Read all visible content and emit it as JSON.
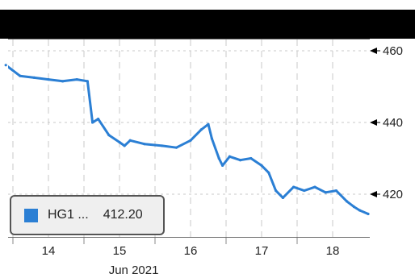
{
  "chart_data": {
    "type": "line",
    "x_ticks": [
      "14",
      "15",
      "16",
      "17",
      "18"
    ],
    "x_month_label": "Jun 2021",
    "y_ticks": [
      420,
      440,
      460
    ],
    "ylim": [
      411,
      463
    ],
    "grid": true,
    "grid_style": "dashed",
    "legend_position": "bottom-left",
    "series": [
      {
        "name": "HG1 ...",
        "last_value": "412.20",
        "color": "#2b7fd4",
        "x": [
          13.4,
          13.6,
          13.8,
          14.0,
          14.2,
          14.4,
          14.55,
          14.62,
          14.7,
          14.85,
          15.0,
          15.07,
          15.15,
          15.35,
          15.6,
          15.8,
          16.0,
          16.15,
          16.25,
          16.3,
          16.4,
          16.45,
          16.55,
          16.7,
          16.85,
          17.0,
          17.1,
          17.2,
          17.3,
          17.45,
          17.6,
          17.75,
          17.9,
          18.05,
          18.2,
          18.3,
          18.38,
          18.5
        ],
        "values": [
          456,
          453,
          452.5,
          452,
          451.5,
          452,
          451.5,
          440,
          441,
          436.5,
          434.5,
          433.5,
          435,
          434,
          433.5,
          433,
          435,
          438,
          439.5,
          435.5,
          430,
          428,
          430.5,
          429.5,
          430,
          428,
          426,
          421,
          419,
          422,
          421,
          422,
          420.5,
          421,
          418,
          416.5,
          415.5,
          414.5
        ]
      }
    ]
  }
}
